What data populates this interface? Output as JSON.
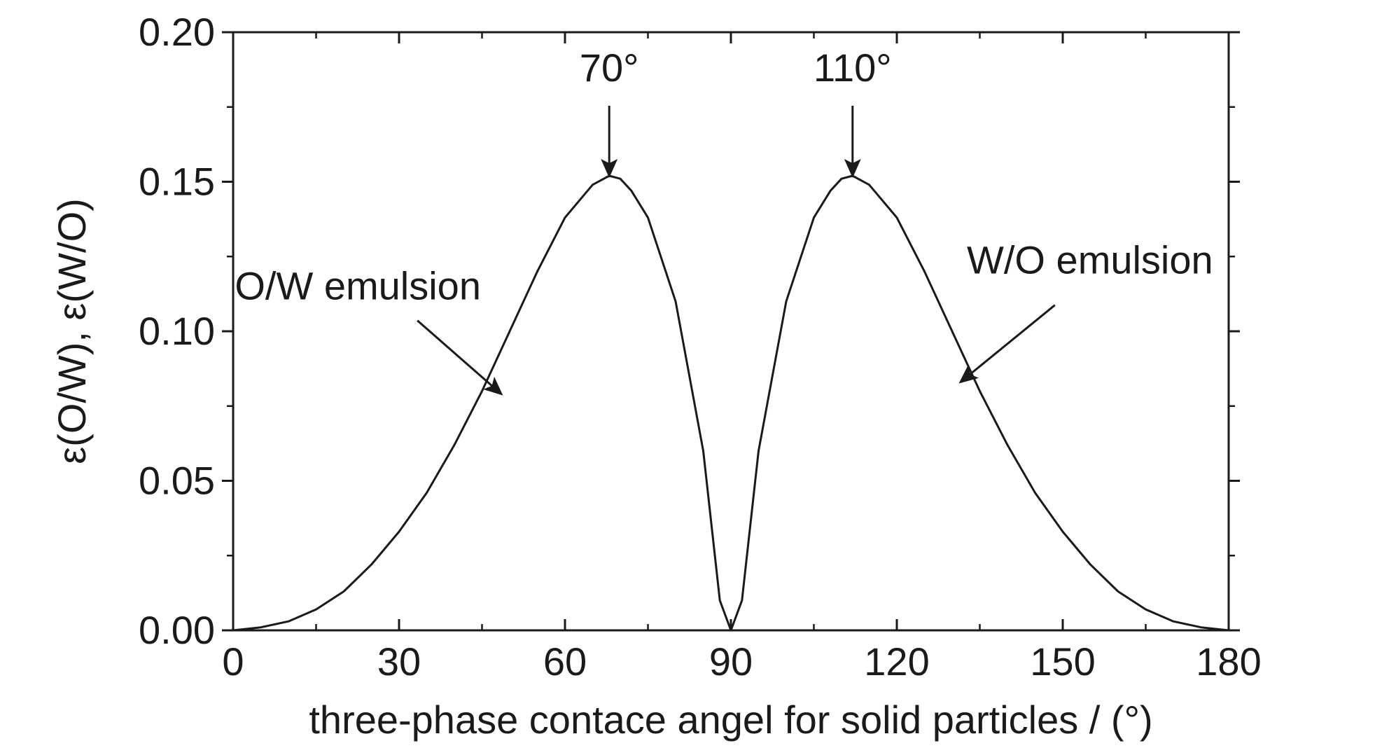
{
  "chart_data": {
    "type": "line",
    "title": "",
    "xlabel": "three-phase contace angel for solid particles / (°)",
    "ylabel": "ε(O/W), ε(W/O)",
    "xlim": [
      0,
      180
    ],
    "ylim": [
      0,
      0.2
    ],
    "x_ticks": [
      0,
      30,
      60,
      90,
      120,
      150,
      180
    ],
    "x_tick_labels": [
      "0",
      "30",
      "60",
      "90",
      "120",
      "150",
      "180"
    ],
    "y_ticks": [
      0,
      0.05,
      0.1,
      0.15,
      0.2
    ],
    "y_tick_labels": [
      "0.00",
      "0.05",
      "0.10",
      "0.15",
      "0.20"
    ],
    "grid": false,
    "legend": "none",
    "series": [
      {
        "x": [
          0,
          5,
          10,
          15,
          20,
          25,
          30,
          35,
          40,
          45,
          50,
          55,
          60,
          65,
          68,
          70,
          72,
          75,
          80,
          85,
          88,
          90,
          92,
          95,
          100,
          105,
          108,
          110,
          112,
          115,
          120,
          125,
          130,
          135,
          140,
          145,
          150,
          155,
          160,
          165,
          170,
          175,
          180
        ],
        "y": [
          0,
          0.001,
          0.003,
          0.007,
          0.013,
          0.022,
          0.033,
          0.046,
          0.062,
          0.08,
          0.1,
          0.12,
          0.138,
          0.149,
          0.152,
          0.151,
          0.147,
          0.138,
          0.11,
          0.06,
          0.01,
          0,
          0.01,
          0.06,
          0.11,
          0.138,
          0.147,
          0.151,
          0.152,
          0.149,
          0.138,
          0.12,
          0.1,
          0.08,
          0.062,
          0.046,
          0.033,
          0.022,
          0.013,
          0.007,
          0.003,
          0.001,
          0
        ],
        "color": "#1a1a1a"
      }
    ],
    "annotations": [
      {
        "text": "70°",
        "target_x": 68,
        "target_y": 0.152,
        "style": "vertical-arrow"
      },
      {
        "text": "110°",
        "target_x": 112,
        "target_y": 0.152,
        "style": "vertical-arrow"
      },
      {
        "text": "O/W emulsion",
        "target_x": 48.5,
        "target_y": 0.079,
        "style": "diagonal-arrow"
      },
      {
        "text": "W/O emulsion",
        "target_x": 131.5,
        "target_y": 0.083,
        "style": "diagonal-arrow"
      }
    ]
  }
}
